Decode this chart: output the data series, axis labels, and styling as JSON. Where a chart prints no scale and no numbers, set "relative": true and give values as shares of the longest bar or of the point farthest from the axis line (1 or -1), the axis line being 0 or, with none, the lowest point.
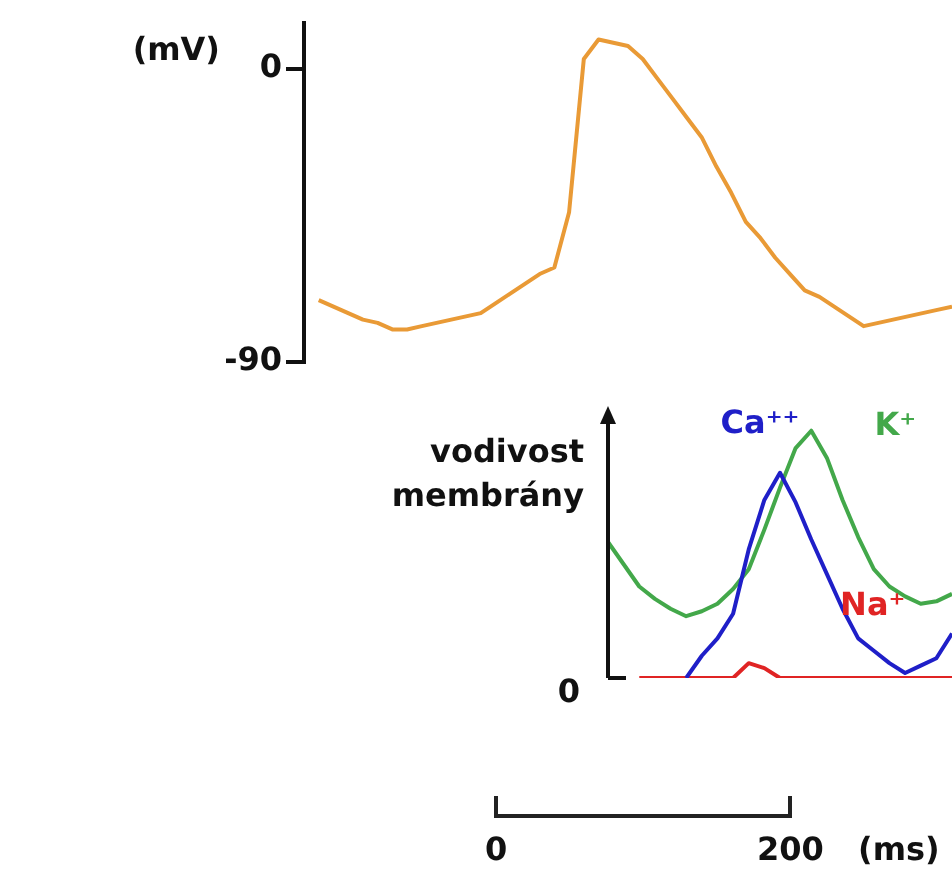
{
  "chart_data": [
    {
      "type": "line",
      "ylabel": "(mV)",
      "ylim": [
        -90,
        14
      ],
      "yticks": [
        0,
        {
          "value": -90,
          "label": "-90"
        }
      ],
      "tick_labels": "y",
      "grid": false,
      "legend": false,
      "marker": "none",
      "line_style": "solid",
      "categories": [
        null,
        null,
        null,
        null,
        null,
        null,
        null,
        null,
        null,
        null,
        null,
        null,
        null,
        null,
        null,
        null,
        null,
        null,
        null,
        null,
        null,
        null,
        null,
        null,
        null,
        null,
        null,
        null,
        null,
        null,
        null,
        null,
        null,
        null,
        null,
        null,
        null,
        null,
        null,
        null,
        null,
        null,
        null,
        null,
        null
      ],
      "series": [
        {
          "color": "#e99a36",
          "values": [
            null,
            -71,
            -73,
            -75,
            -77,
            -78,
            -80,
            -80,
            -79,
            -78,
            -77,
            -76,
            -75,
            -72,
            -69,
            -66,
            -63,
            -61,
            -44,
            3,
            9,
            8,
            7,
            3,
            -3,
            -9,
            -15,
            -21,
            -30,
            -38,
            -47,
            -52,
            -58,
            -63,
            -68,
            -70,
            -73,
            -76,
            -79,
            -78,
            -77,
            -76,
            -75,
            -74,
            -73
          ]
        }
      ]
    },
    {
      "type": "line",
      "relative": true,
      "ylabel": "vodivost membrány",
      "xlabel": "(ms)",
      "tick_labels": false,
      "grid": false,
      "legend": false,
      "marker": "none",
      "line_style": "solid",
      "annotations": [
        "0",
        "0",
        "200"
      ],
      "categories": [
        null,
        null,
        null,
        null,
        null,
        null,
        null,
        null,
        null,
        null,
        null,
        null,
        null,
        null,
        null,
        null,
        null,
        null,
        null,
        null,
        null,
        null,
        null
      ],
      "series": [
        {
          "name": "Ca⁺⁺",
          "color": "#1f1fc8",
          "values": [
            null,
            null,
            null,
            null,
            null,
            0,
            0.09,
            0.16,
            0.26,
            0.52,
            0.72,
            0.83,
            0.71,
            0.56,
            0.42,
            0.28,
            0.16,
            0.11,
            0.06,
            0.02,
            0.05,
            0.08,
            0.18
          ]
        },
        {
          "name": "K⁺",
          "color": "#43a84a",
          "values": [
            0.55,
            0.46,
            0.37,
            0.32,
            0.28,
            0.25,
            0.27,
            0.3,
            0.36,
            0.44,
            0.6,
            0.77,
            0.93,
            1,
            0.89,
            0.72,
            0.57,
            0.44,
            0.37,
            0.33,
            0.3,
            0.31,
            0.34
          ]
        },
        {
          "name": "Na⁺",
          "color": "#e02424",
          "values": [
            null,
            null,
            0,
            0,
            0,
            0,
            0,
            0,
            0,
            0.06,
            0.04,
            0,
            0,
            0,
            0,
            0,
            0,
            0,
            0,
            0,
            0,
            0,
            0
          ]
        }
      ]
    }
  ]
}
